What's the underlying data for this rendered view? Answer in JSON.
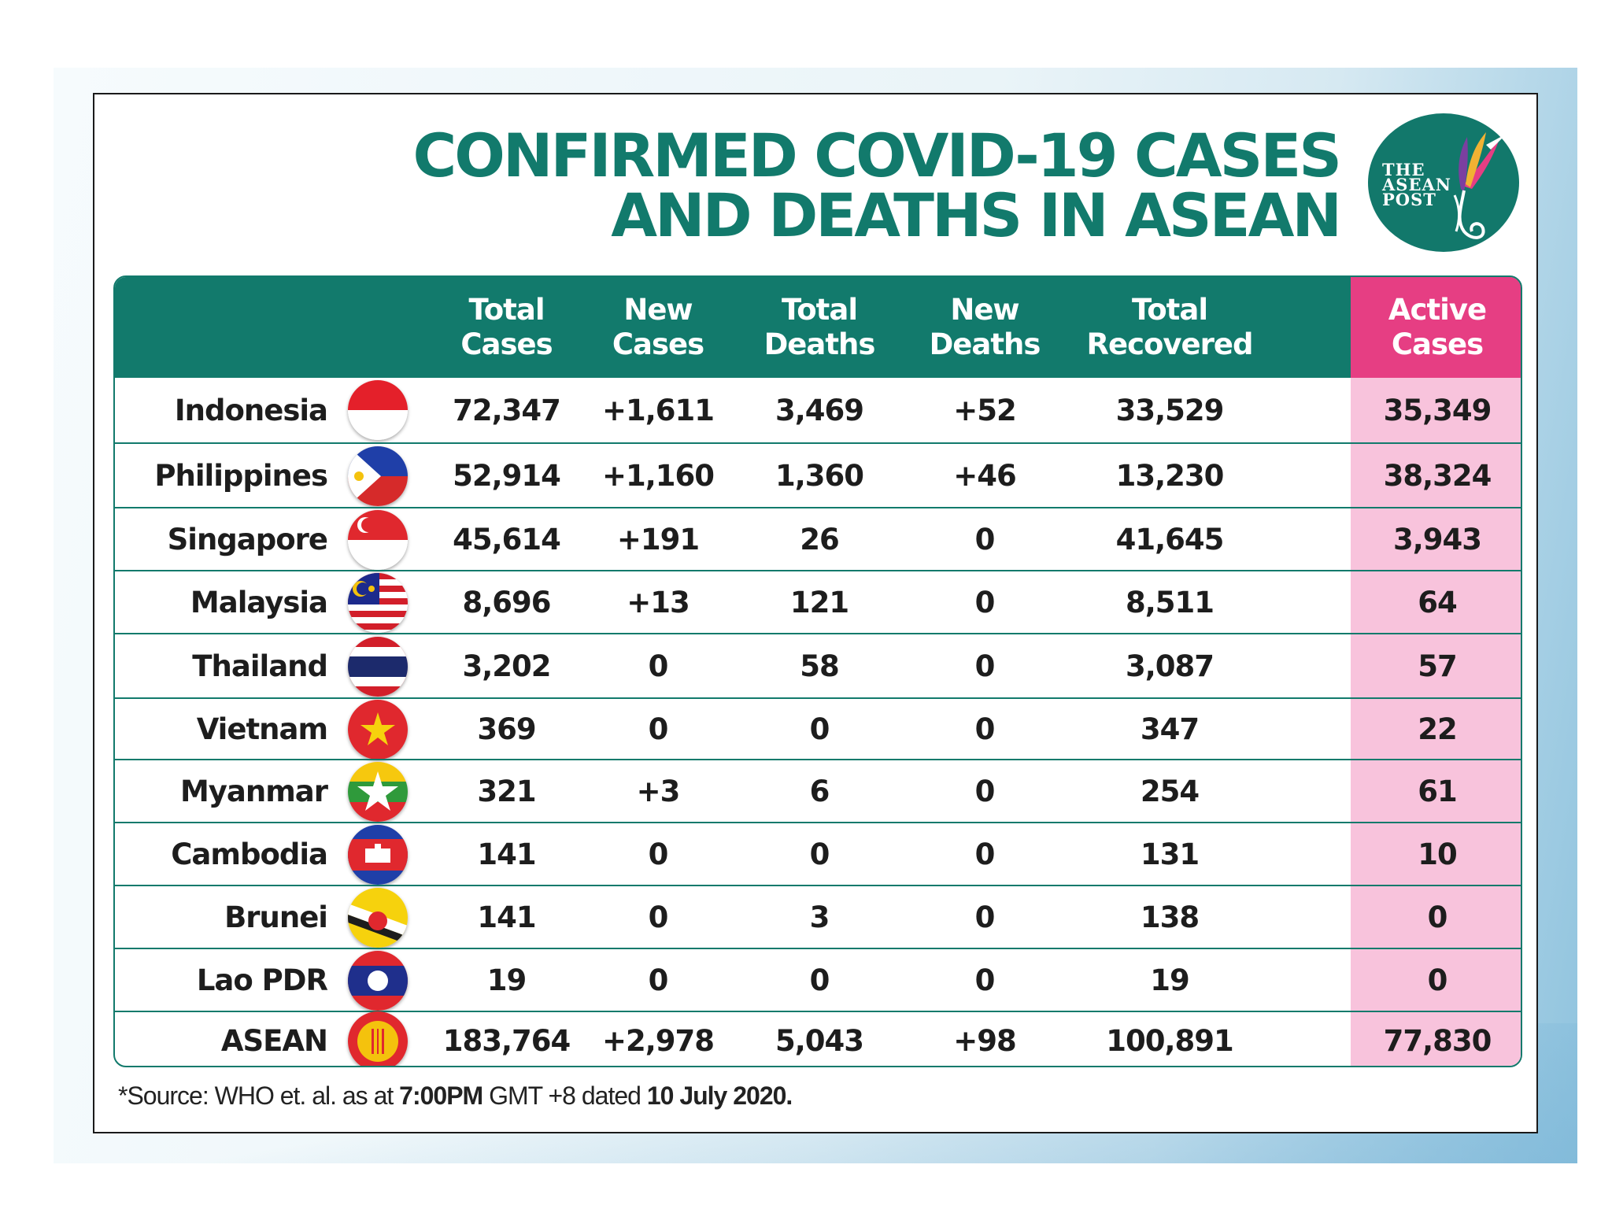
{
  "title": {
    "line1": "CONFIRMED COVID-19 CASES",
    "line2": "AND DEATHS IN ASEAN"
  },
  "logo": {
    "line1": "THE",
    "line2": "ASEAN",
    "line3": "POST",
    "icon": "hummingbird-icon"
  },
  "headers": {
    "total_cases": "Total\nCases",
    "new_cases": "New\nCases",
    "total_deaths": "Total\nDeaths",
    "new_deaths": "New\nDeaths",
    "total_recovered": "Total\nRecovered",
    "active_cases": "Active\nCases"
  },
  "rows": [
    {
      "country": "Indonesia",
      "flag": "indonesia-flag-icon",
      "total_cases": "72,347",
      "new_cases": "+1,611",
      "total_deaths": "3,469",
      "new_deaths": "+52",
      "total_recovered": "33,529",
      "active_cases": "35,349"
    },
    {
      "country": "Philippines",
      "flag": "philippines-flag-icon",
      "total_cases": "52,914",
      "new_cases": "+1,160",
      "total_deaths": "1,360",
      "new_deaths": "+46",
      "total_recovered": "13,230",
      "active_cases": "38,324"
    },
    {
      "country": "Singapore",
      "flag": "singapore-flag-icon",
      "total_cases": "45,614",
      "new_cases": "+191",
      "total_deaths": "26",
      "new_deaths": "0",
      "total_recovered": "41,645",
      "active_cases": "3,943"
    },
    {
      "country": "Malaysia",
      "flag": "malaysia-flag-icon",
      "total_cases": "8,696",
      "new_cases": "+13",
      "total_deaths": "121",
      "new_deaths": "0",
      "total_recovered": "8,511",
      "active_cases": "64"
    },
    {
      "country": "Thailand",
      "flag": "thailand-flag-icon",
      "total_cases": "3,202",
      "new_cases": "0",
      "total_deaths": "58",
      "new_deaths": "0",
      "total_recovered": "3,087",
      "active_cases": "57"
    },
    {
      "country": "Vietnam",
      "flag": "vietnam-flag-icon",
      "total_cases": "369",
      "new_cases": "0",
      "total_deaths": "0",
      "new_deaths": "0",
      "total_recovered": "347",
      "active_cases": "22"
    },
    {
      "country": "Myanmar",
      "flag": "myanmar-flag-icon",
      "total_cases": "321",
      "new_cases": "+3",
      "total_deaths": "6",
      "new_deaths": "0",
      "total_recovered": "254",
      "active_cases": "61"
    },
    {
      "country": "Cambodia",
      "flag": "cambodia-flag-icon",
      "total_cases": "141",
      "new_cases": "0",
      "total_deaths": "0",
      "new_deaths": "0",
      "total_recovered": "131",
      "active_cases": "10"
    },
    {
      "country": "Brunei",
      "flag": "brunei-flag-icon",
      "total_cases": "141",
      "new_cases": "0",
      "total_deaths": "3",
      "new_deaths": "0",
      "total_recovered": "138",
      "active_cases": "0"
    },
    {
      "country": "Lao PDR",
      "flag": "laos-flag-icon",
      "total_cases": "19",
      "new_cases": "0",
      "total_deaths": "0",
      "new_deaths": "0",
      "total_recovered": "19",
      "active_cases": "0"
    },
    {
      "country": "ASEAN",
      "flag": "asean-flag-icon",
      "total_cases": "183,764",
      "new_cases": "+2,978",
      "total_deaths": "5,043",
      "new_deaths": "+98",
      "total_recovered": "100,891",
      "active_cases": "77,830"
    }
  ],
  "source": {
    "prefix": "*Source: WHO et. al. as at ",
    "time": "7:00PM",
    "middle": " GMT +8 dated ",
    "date": "10 July 2020."
  },
  "colors": {
    "teal": "#127a6c",
    "pink_header": "#e63e83",
    "pink_column": "#f8c3dc"
  }
}
